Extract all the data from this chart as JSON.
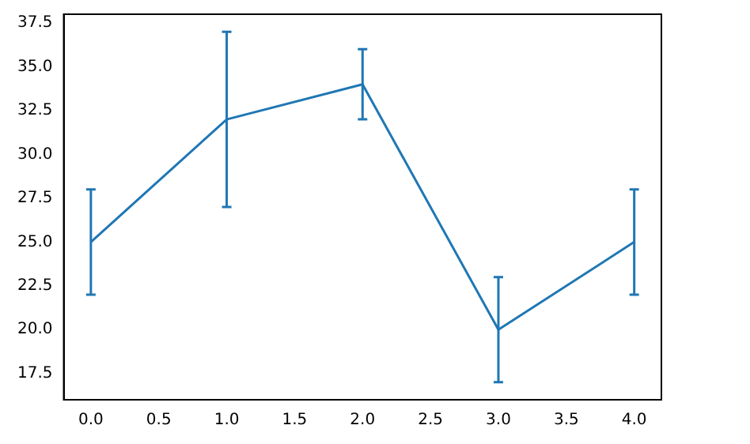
{
  "chart_data": {
    "type": "line",
    "x": [
      0,
      1,
      2,
      3,
      4
    ],
    "series": [
      {
        "color": "#1f77b4",
        "values": [
          25,
          32,
          34,
          20,
          25
        ],
        "errors": [
          3,
          5,
          2,
          3,
          3
        ]
      }
    ],
    "xlim": [
      -0.2,
      4.2
    ],
    "ylim": [
      16,
      38
    ],
    "xticks": [
      {
        "value": 0,
        "label": "0.0"
      },
      {
        "value": 0.5,
        "label": "0.5"
      },
      {
        "value": 1,
        "label": "1.0"
      },
      {
        "value": 1.5,
        "label": "1.5"
      },
      {
        "value": 2,
        "label": "2.0"
      },
      {
        "value": 2.5,
        "label": "2.5"
      },
      {
        "value": 3,
        "label": "3.0"
      },
      {
        "value": 3.5,
        "label": "3.5"
      },
      {
        "value": 4,
        "label": "4.0"
      }
    ],
    "yticks": [
      {
        "value": 17.5,
        "label": "17.5"
      },
      {
        "value": 20,
        "label": "20.0"
      },
      {
        "value": 22.5,
        "label": "22.5"
      },
      {
        "value": 25,
        "label": "25.0"
      },
      {
        "value": 27.5,
        "label": "27.5"
      },
      {
        "value": 30,
        "label": "30.0"
      },
      {
        "value": 32.5,
        "label": "32.5"
      },
      {
        "value": 35,
        "label": "35.0"
      },
      {
        "value": 37.5,
        "label": "37.5"
      }
    ],
    "grid": false,
    "legend": false,
    "marker": "none",
    "line_style": "solid"
  }
}
